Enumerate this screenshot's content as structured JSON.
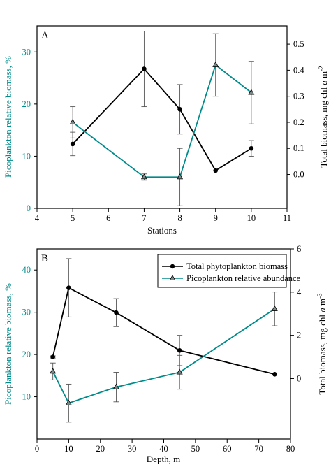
{
  "colors": {
    "black_series": "#000000",
    "teal_series": "#008b8b",
    "axis": "#000000"
  },
  "chart_data": [
    {
      "type": "line",
      "panel_label": "A",
      "xlabel": "Stations",
      "ylabel_left": "Picoplankton relative biomass, %",
      "ylabel_right_parts": [
        "Total biomass, mg chl ",
        "a",
        " m",
        "-2"
      ],
      "xlim": [
        4,
        11
      ],
      "xticks": [
        4,
        5,
        6,
        7,
        8,
        9,
        10,
        11
      ],
      "ylim_left": [
        0,
        35
      ],
      "yticks_left": [
        0,
        10,
        20,
        30
      ],
      "ylim_right": [
        -0.13,
        0.57
      ],
      "yticks_right": [
        "0.0",
        "0.1",
        "0.2",
        "0.3",
        "0.4",
        "0.5"
      ],
      "series": [
        {
          "axis": "right",
          "color": "#000000",
          "marker": "circle",
          "x": [
            5,
            7,
            8,
            9,
            10
          ],
          "y": [
            0.117,
            0.405,
            0.25,
            0.015,
            0.1
          ],
          "err": [
            0.045,
            0.145,
            0.095,
            0.0,
            0.03
          ]
        },
        {
          "axis": "left",
          "color": "#008b8b",
          "marker": "triangle",
          "x": [
            5,
            7,
            8,
            9,
            10
          ],
          "y": [
            16.5,
            6.0,
            6.0,
            27.5,
            22.2
          ],
          "err": [
            3.0,
            0.6,
            5.5,
            6.0,
            6.0
          ]
        }
      ]
    },
    {
      "type": "line",
      "panel_label": "B",
      "xlabel": "Depth, m",
      "ylabel_left": "Picoplankton relative biomass, %",
      "ylabel_right_parts": [
        "Total biomass, mg chl ",
        "a",
        " m",
        "-3"
      ],
      "xlim": [
        0,
        80
      ],
      "xticks": [
        0,
        10,
        20,
        30,
        40,
        50,
        60,
        70,
        80
      ],
      "ylim_left": [
        0,
        45
      ],
      "yticks_left": [
        10,
        20,
        30,
        40
      ],
      "ylim_right": [
        -2.8,
        6
      ],
      "yticks_right": [
        "0",
        "2",
        "4",
        "6"
      ],
      "legend": {
        "position": "top-right",
        "entries": [
          "Total phytoplankton biomass",
          "Picoplankton relative abundance"
        ]
      },
      "series": [
        {
          "name": "Total phytoplankton biomass",
          "axis": "right",
          "color": "#000000",
          "marker": "circle",
          "x": [
            5,
            10,
            25,
            45,
            75
          ],
          "y": [
            1.0,
            4.2,
            3.05,
            1.3,
            0.2
          ],
          "err": [
            0.05,
            1.35,
            0.65,
            0.7,
            0.0
          ]
        },
        {
          "name": "Picoplankton relative abundance",
          "axis": "left",
          "color": "#008b8b",
          "marker": "triangle",
          "x": [
            5,
            10,
            25,
            45,
            75
          ],
          "y": [
            16.0,
            8.5,
            12.3,
            15.8,
            30.8
          ],
          "err": [
            2.0,
            4.5,
            3.5,
            4.0,
            4.0
          ]
        }
      ]
    }
  ]
}
